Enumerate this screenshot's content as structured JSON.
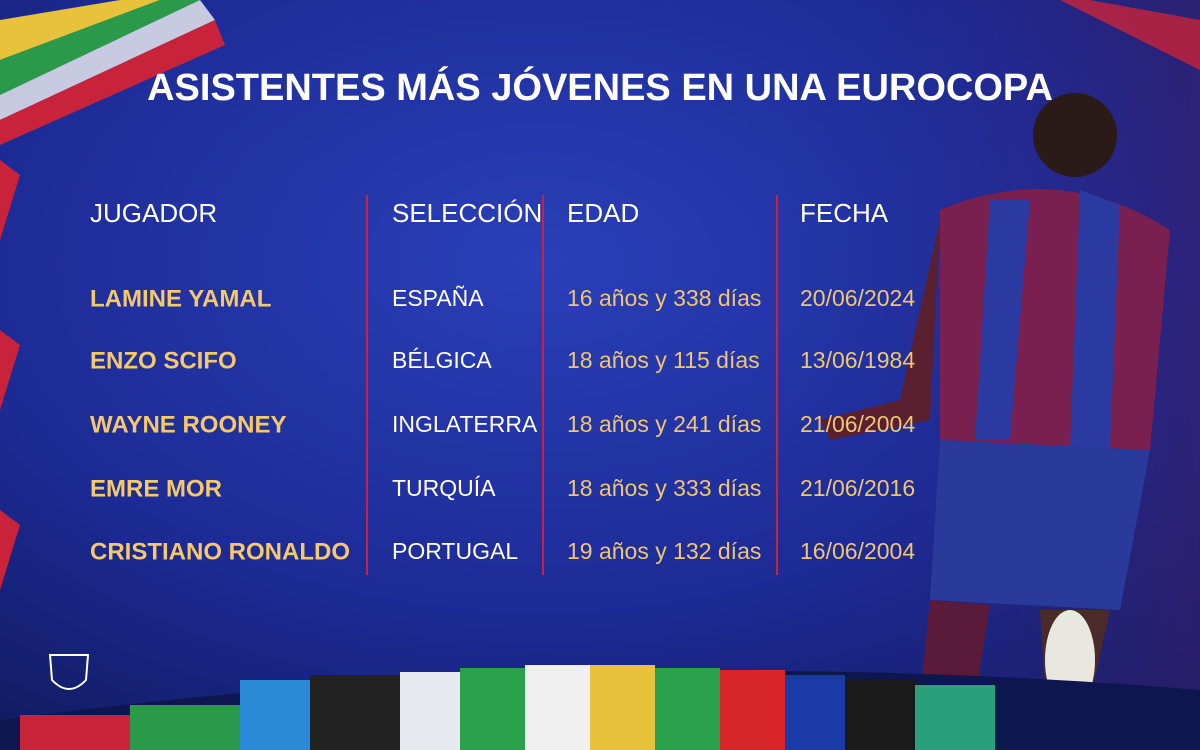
{
  "header": {
    "title": "ASISTENTES MÁS JÓVENES EN UNA EUROCOPA"
  },
  "table": {
    "columns": [
      "JUGADOR",
      "SELECCIÓN",
      "EDAD",
      "FECHA"
    ],
    "rows": [
      [
        "LAMINE YAMAL",
        "ESPAÑA",
        "16 años y 338 días",
        "20/06/2024"
      ],
      [
        "ENZO SCIFO",
        "BÉLGICA",
        "18 años y 115 días",
        "13/06/1984"
      ],
      [
        "WAYNE ROONEY",
        "INGLATERRA",
        "18 años y 241 días",
        "21/06/2004"
      ],
      [
        "EMRE MOR",
        "TURQUÍA",
        "18 años y 333 días",
        "21/06/2016"
      ],
      [
        "CRISTIANO RONALDO",
        "PORTUGAL",
        "19 años y 132 días",
        "16/06/2004"
      ]
    ]
  }
}
